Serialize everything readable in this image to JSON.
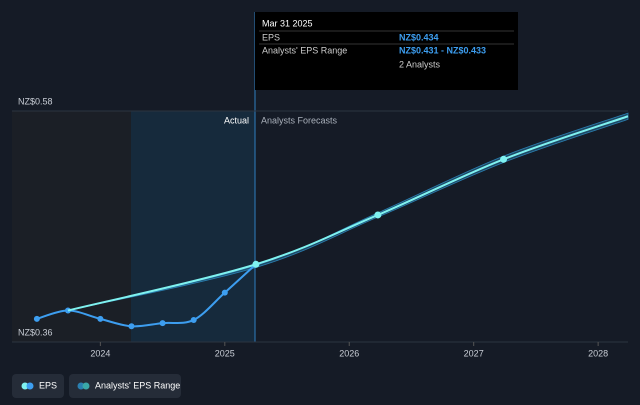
{
  "chart_data": {
    "type": "line",
    "series": [
      {
        "name": "EPS",
        "color": "#3d9ef0",
        "x": [
          2023.49,
          2023.74,
          2024.0,
          2024.25,
          2024.5,
          2024.75,
          2025.0,
          2025.25
        ],
        "values": [
          0.382,
          0.39,
          0.382,
          0.375,
          0.378,
          0.381,
          0.407,
          0.434
        ]
      },
      {
        "name": "Analysts' EPS Range",
        "color": "#7ff2f0",
        "band_color": "#2a7fb0",
        "x": [
          2023.74,
          2025.25,
          2026.23,
          2027.24,
          2028.24
        ],
        "values": [
          0.39,
          0.434,
          0.481,
          0.534,
          0.575
        ],
        "low": [
          0.39,
          0.431,
          0.479,
          0.531,
          0.572
        ],
        "high": [
          0.39,
          0.433,
          0.483,
          0.537,
          0.578
        ]
      }
    ],
    "xlim": [
      2023.29,
      2028.24
    ],
    "xticks": [
      2024,
      2025,
      2026,
      2027,
      2028
    ],
    "ylim": [
      0.36,
      0.58
    ],
    "yticks": [
      {
        "value": 0.36,
        "label": "NZ$0.36"
      },
      {
        "value": 0.58,
        "label": "NZ$0.58"
      }
    ],
    "grid": true,
    "annotations": {
      "actual": "Actual",
      "forecast": "Analysts Forecasts"
    },
    "tooltip": {
      "date": "Mar 31 2025",
      "eps_label": "EPS",
      "eps_value": "NZ$0.434",
      "range_label": "Analysts' EPS Range",
      "range_value": "NZ$0.431 - NZ$0.433",
      "analysts": "2 Analysts"
    }
  }
}
